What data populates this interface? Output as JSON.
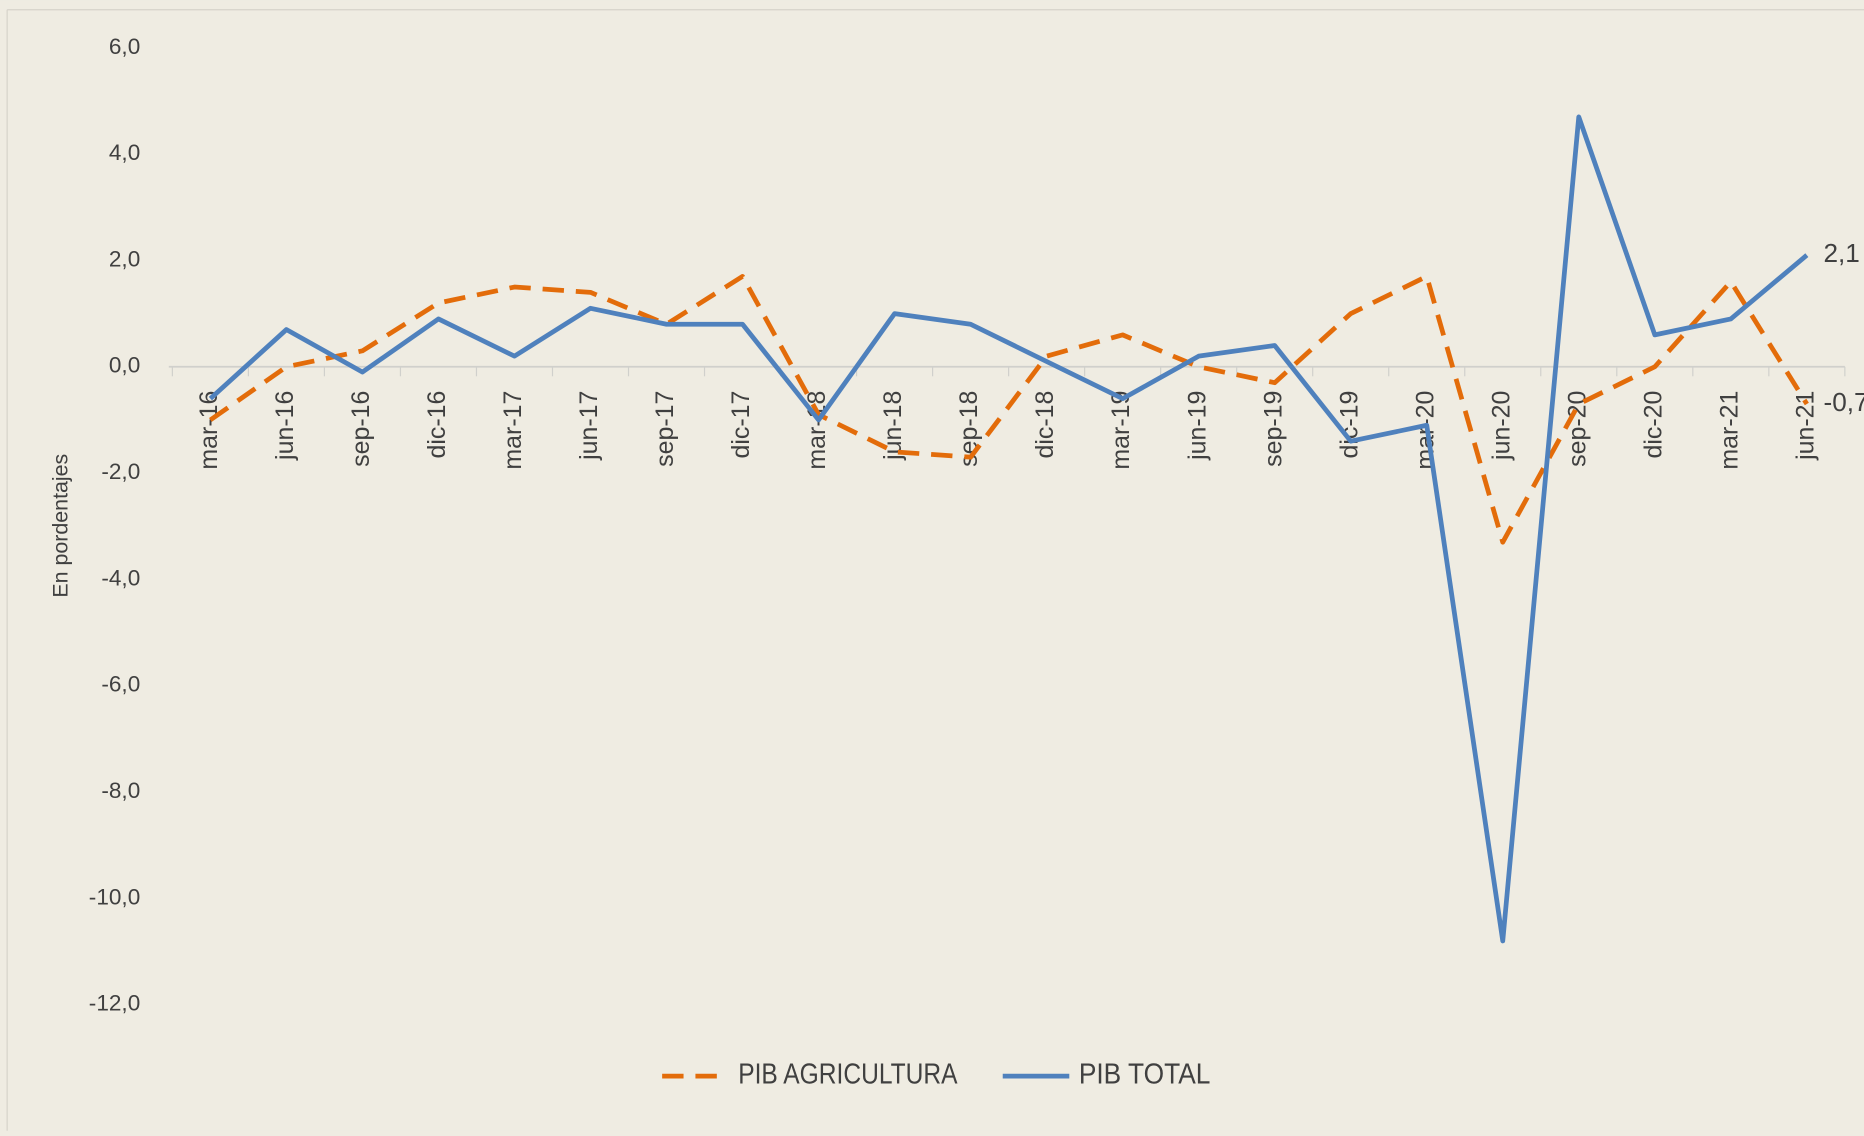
{
  "chart_data": {
    "type": "line",
    "y_label": "En pordentajes",
    "categories": [
      "mar-16",
      "jun-16",
      "sep-16",
      "dic-16",
      "mar-17",
      "jun-17",
      "sep-17",
      "dic-17",
      "mar-18",
      "jun-18",
      "sep-18",
      "dic-18",
      "mar-19",
      "jun-19",
      "sep-19",
      "dic-19",
      "mar-20",
      "jun-20",
      "sep-20",
      "dic-20",
      "mar-21",
      "jun-21"
    ],
    "series": [
      {
        "name": "PIB AGRICULTURA",
        "color": "#e36c0a",
        "dashed": true,
        "values": [
          -1.0,
          0.0,
          0.3,
          1.2,
          1.5,
          1.4,
          0.8,
          1.7,
          -0.9,
          -1.6,
          -1.7,
          0.2,
          0.6,
          0.0,
          -0.3,
          1.0,
          1.7,
          -3.3,
          -0.7,
          0.0,
          1.6,
          -0.7
        ],
        "value_labels": [
          null,
          null,
          null,
          null,
          null,
          null,
          null,
          null,
          null,
          null,
          null,
          null,
          null,
          null,
          null,
          null,
          null,
          null,
          null,
          null,
          null,
          "-0,7"
        ]
      },
      {
        "name": "PIB TOTAL",
        "color": "#4f81bd",
        "dashed": false,
        "values": [
          -0.6,
          0.7,
          -0.1,
          0.9,
          0.2,
          1.1,
          0.8,
          0.8,
          -1.0,
          1.0,
          0.8,
          0.1,
          -0.6,
          0.2,
          0.4,
          -1.4,
          -1.1,
          -10.8,
          4.7,
          0.6,
          0.9,
          2.1
        ],
        "value_labels": [
          null,
          null,
          null,
          null,
          null,
          null,
          null,
          null,
          null,
          null,
          null,
          null,
          null,
          null,
          null,
          null,
          null,
          null,
          null,
          null,
          null,
          "2,1"
        ]
      }
    ],
    "ylim": [
      -12,
      6
    ],
    "yticks": [
      {
        "value": -12,
        "label": "-12,0"
      },
      {
        "value": -10,
        "label": "-10,0"
      },
      {
        "value": -8,
        "label": "-8,0"
      },
      {
        "value": -6,
        "label": "-6,0"
      },
      {
        "value": -4,
        "label": "-4,0"
      },
      {
        "value": -2,
        "label": "-2,0"
      },
      {
        "value": 0,
        "label": "0,0"
      },
      {
        "value": 2,
        "label": "2,0"
      },
      {
        "value": 4,
        "label": "4,0"
      },
      {
        "value": 6,
        "label": "6,0"
      }
    ],
    "grid": false,
    "legend": "bottom"
  }
}
